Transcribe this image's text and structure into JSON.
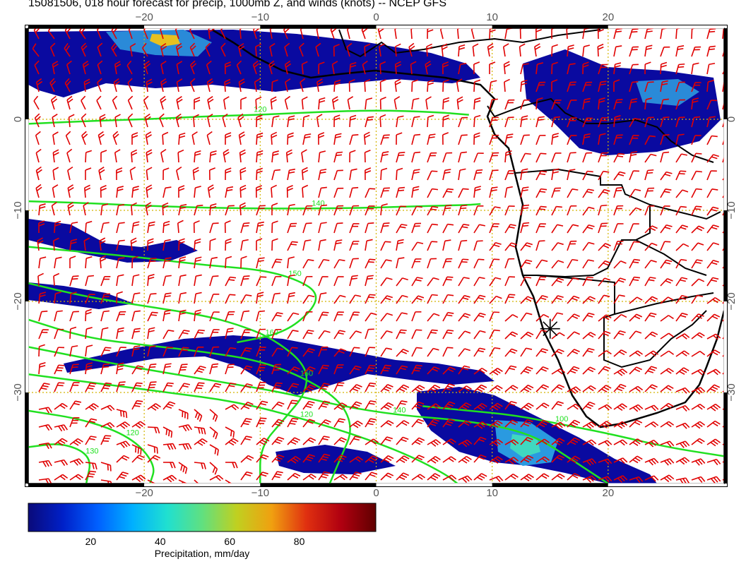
{
  "title": "15081506, 018 hour forecast for precip, 1000mb Z, and winds (knots) -- NCEP GFS",
  "map": {
    "lon_range": [
      -30,
      30
    ],
    "lat_range": [
      -40,
      10
    ],
    "lon_ticks": [
      -20,
      -10,
      0,
      10,
      20
    ],
    "lon_tick_labels": [
      "−20",
      "−10",
      "0",
      "10",
      "20"
    ],
    "lat_ticks": [
      0,
      -10,
      -20,
      -30
    ],
    "lat_tick_labels": [
      "0",
      "−10",
      "−20",
      "−30"
    ],
    "grid": true,
    "station_marker": {
      "lon": 15,
      "lat": -23
    }
  },
  "contours": [
    {
      "label": "120",
      "points": [
        [
          -30,
          -0.5
        ],
        [
          -25,
          -0.2
        ],
        [
          -20,
          0
        ],
        [
          -15,
          0.3
        ],
        [
          -10,
          0.5
        ],
        [
          -5,
          0.8
        ],
        [
          0,
          1
        ],
        [
          5,
          0.8
        ],
        [
          8,
          0.5
        ]
      ]
    },
    {
      "label": "140",
      "points": [
        [
          -30,
          -9
        ],
        [
          -25,
          -9.2
        ],
        [
          -20,
          -9.5
        ],
        [
          -15,
          -9.7
        ],
        [
          -10,
          -9.8
        ],
        [
          -5,
          -9.8
        ],
        [
          0,
          -9.7
        ],
        [
          5,
          -9.5
        ],
        [
          8,
          -9.4
        ],
        [
          9,
          -9.3
        ]
      ]
    },
    {
      "label": "150",
      "points": [
        [
          -30,
          -14
        ],
        [
          -25,
          -14.6
        ],
        [
          -20,
          -15.2
        ],
        [
          -15,
          -16
        ],
        [
          -10,
          -16.5
        ],
        [
          -7,
          -17.5
        ],
        [
          -5,
          -19
        ],
        [
          -5.5,
          -21
        ],
        [
          -8,
          -23.5
        ],
        [
          -12,
          -24.5
        ]
      ]
    },
    {
      "label": "160",
      "points": [
        [
          -30,
          -18
        ],
        [
          -25,
          -19.5
        ],
        [
          -20,
          -20.5
        ],
        [
          -15,
          -21.5
        ],
        [
          -12,
          -22.5
        ],
        [
          -9,
          -24
        ],
        [
          -6,
          -27
        ],
        [
          -6,
          -30
        ],
        [
          -8,
          -33
        ],
        [
          -10,
          -36
        ],
        [
          -10,
          -40
        ]
      ]
    },
    {
      "label": "150",
      "points": [
        [
          -30,
          -22
        ],
        [
          -25,
          -24
        ],
        [
          -20,
          -24.8
        ],
        [
          -15,
          -25.5
        ],
        [
          -10,
          -26.5
        ],
        [
          -6,
          -28.5
        ],
        [
          -3,
          -31
        ],
        [
          -2,
          -34
        ],
        [
          -3,
          -37
        ],
        [
          -4,
          -40
        ]
      ]
    },
    {
      "label": "140",
      "points": [
        [
          -30,
          -25
        ],
        [
          -22,
          -27
        ],
        [
          -15,
          -28.5
        ],
        [
          -8,
          -30
        ],
        [
          -3,
          -31.5
        ],
        [
          2,
          -32.5
        ],
        [
          7,
          -33
        ],
        [
          11,
          -33.8
        ],
        [
          14,
          -35
        ],
        [
          17,
          -37.5
        ],
        [
          20,
          -40
        ]
      ]
    },
    {
      "label": "120",
      "points": [
        [
          -30,
          -28
        ],
        [
          -24,
          -29
        ],
        [
          -18,
          -30
        ],
        [
          -12,
          -31
        ],
        [
          -6,
          -33
        ],
        [
          -1,
          -35
        ],
        [
          3,
          -37
        ],
        [
          6,
          -39
        ],
        [
          7,
          -40
        ]
      ]
    },
    {
      "label": "100",
      "points": [
        [
          4,
          -31.5
        ],
        [
          8,
          -32
        ],
        [
          12,
          -32.5
        ],
        [
          16,
          -33.5
        ],
        [
          20,
          -34.5
        ],
        [
          25,
          -36
        ],
        [
          30,
          -37
        ]
      ]
    },
    {
      "label": "120",
      "points": [
        [
          -30,
          -32
        ],
        [
          -25,
          -33
        ],
        [
          -21,
          -35
        ],
        [
          -19,
          -38
        ],
        [
          -19.5,
          -40
        ]
      ]
    },
    {
      "label": "130",
      "points": [
        [
          -30,
          -36
        ],
        [
          -27,
          -35.5
        ],
        [
          -24.5,
          -37
        ],
        [
          -25,
          -40
        ]
      ]
    }
  ],
  "colorbar": {
    "label": "Precipitation, mm/day",
    "min": 0,
    "max": 100,
    "ticks": [
      20,
      40,
      60,
      80
    ],
    "tick_labels": [
      "20",
      "40",
      "60",
      "80"
    ],
    "colors": [
      "#0a0a7a",
      "#0020c8",
      "#0060ff",
      "#00b0ff",
      "#20e0d0",
      "#60e080",
      "#c0d020",
      "#f0a010",
      "#e03010",
      "#b00010",
      "#600000"
    ]
  }
}
